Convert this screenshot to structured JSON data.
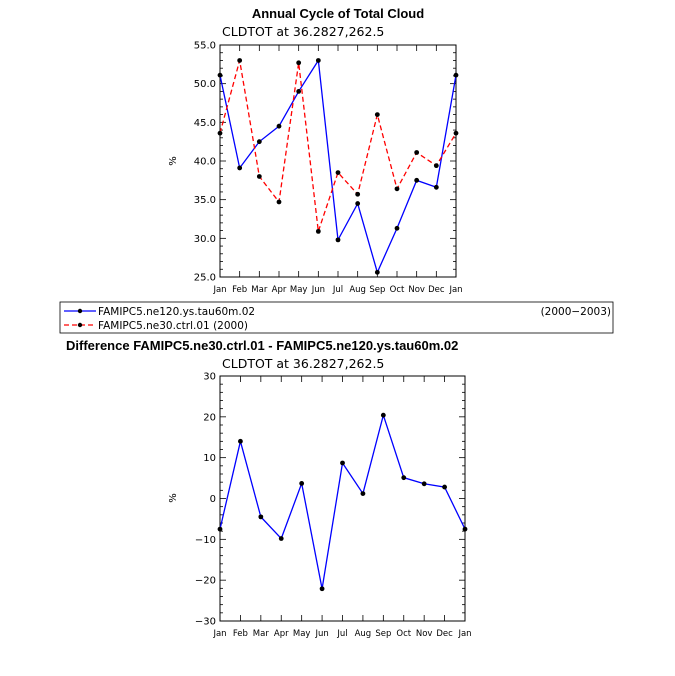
{
  "chart_data": [
    {
      "type": "line",
      "title": "Annual Cycle of Total Cloud",
      "subtitle": "CLDTOT at 36.2827,262.5",
      "xlabel": "",
      "ylabel": "%",
      "categories": [
        "Jan",
        "Feb",
        "Mar",
        "Apr",
        "May",
        "Jun",
        "Jul",
        "Aug",
        "Sep",
        "Oct",
        "Nov",
        "Dec",
        "Jan"
      ],
      "ylim": [
        25,
        55
      ],
      "yticks": [
        25,
        30,
        35,
        40,
        45,
        50,
        55
      ],
      "ytick_labels": [
        "25.0",
        "30.0",
        "35.0",
        "40.0",
        "45.0",
        "50.0",
        "55.0"
      ],
      "series": [
        {
          "name": "FAMIPC5.ne120.ys.tau60m.02",
          "period": "(2000−2003)",
          "color": "#0000ff",
          "dash": "solid",
          "values": [
            51.1,
            39.1,
            42.5,
            44.5,
            49.0,
            53.0,
            29.8,
            34.5,
            25.6,
            31.3,
            37.5,
            36.6,
            51.1
          ]
        },
        {
          "name": "FAMIPC5.ne30.ctrl.01 (2000)",
          "color": "#ff0000",
          "dash": "dashed",
          "values": [
            43.6,
            53.0,
            38.0,
            34.7,
            52.7,
            30.9,
            38.5,
            35.7,
            46.0,
            36.4,
            41.1,
            39.4,
            43.6
          ]
        }
      ]
    },
    {
      "type": "line",
      "title": "Difference FAMIPC5.ne30.ctrl.01 - FAMIPC5.ne120.ys.tau60m.02",
      "subtitle": "CLDTOT at 36.2827,262.5",
      "xlabel": "",
      "ylabel": "%",
      "categories": [
        "Jan",
        "Feb",
        "Mar",
        "Apr",
        "May",
        "Jun",
        "Jul",
        "Aug",
        "Sep",
        "Oct",
        "Nov",
        "Dec",
        "Jan"
      ],
      "ylim": [
        -30,
        30
      ],
      "yticks": [
        -30,
        -20,
        -10,
        0,
        10,
        20,
        30
      ],
      "ytick_labels": [
        "−30",
        "−20",
        "−10",
        "0",
        "10",
        "20",
        "30"
      ],
      "series": [
        {
          "name": "Difference",
          "color": "#0000ff",
          "dash": "solid",
          "values": [
            -7.5,
            14.0,
            -4.5,
            -9.8,
            3.7,
            -22.1,
            8.7,
            1.2,
            20.4,
            5.1,
            3.6,
            2.8,
            -7.5
          ]
        }
      ]
    }
  ]
}
